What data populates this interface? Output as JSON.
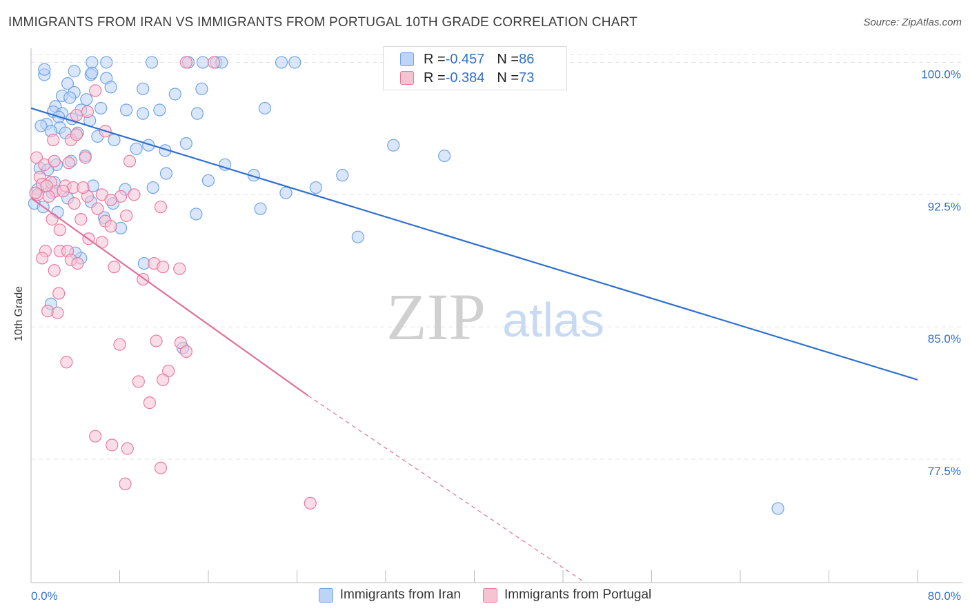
{
  "header": {
    "title": "IMMIGRANTS FROM IRAN VS IMMIGRANTS FROM PORTUGAL 10TH GRADE CORRELATION CHART",
    "source": "Source: ZipAtlas.com"
  },
  "watermark": {
    "zip": "ZIP",
    "atlas": "atlas"
  },
  "legend": {
    "r_label": "R = ",
    "n_label": "N = ",
    "rows": [
      {
        "r": "-0.457",
        "n": "86",
        "color": "#6fa3e8",
        "fill": "#bcd4f5"
      },
      {
        "r": "-0.384",
        "n": "73",
        "color": "#e97aa0",
        "fill": "#f6c3d3"
      }
    ]
  },
  "bottom_legend": [
    {
      "label": "Immigrants from Iran",
      "fill": "#bcd4f5",
      "stroke": "#6fa3e8"
    },
    {
      "label": "Immigrants from Portugal",
      "fill": "#f6c3d3",
      "stroke": "#e97aa0"
    }
  ],
  "chart_data": {
    "type": "scatter",
    "title": "IMMIGRANTS FROM IRAN VS IMMIGRANTS FROM PORTUGAL 10TH GRADE CORRELATION CHART",
    "xlabel": "",
    "ylabel": "10th Grade",
    "xlim": [
      0,
      80
    ],
    "ylim": [
      70.5,
      100.8
    ],
    "x_tick_labels": [
      "0.0%",
      "80.0%"
    ],
    "y_ticks": [
      77.5,
      85.0,
      92.5,
      100.0
    ],
    "y_tick_labels": [
      "77.5%",
      "85.0%",
      "92.5%",
      "100.0%"
    ],
    "grid": true,
    "series": [
      {
        "name": "Immigrants from Iran",
        "color": "#6fa3e8",
        "fill": "#bcd4f5",
        "trend": {
          "x": [
            0,
            80
          ],
          "y": [
            97.4,
            82.0
          ],
          "style": "solid",
          "color": "#2f6fce"
        },
        "points": [
          [
            5.5,
            100.0
          ],
          [
            6.8,
            100.0
          ],
          [
            10.9,
            100.0
          ],
          [
            15.5,
            100.0
          ],
          [
            16.7,
            100.0
          ],
          [
            17.2,
            100.0
          ],
          [
            14.2,
            100.0
          ],
          [
            22.6,
            100.0
          ],
          [
            23.8,
            100.0
          ],
          [
            1.2,
            99.3
          ],
          [
            5.4,
            99.3
          ],
          [
            3.9,
            99.5
          ],
          [
            1.2,
            99.6
          ],
          [
            5.5,
            99.4
          ],
          [
            6.8,
            99.1
          ],
          [
            3.3,
            98.8
          ],
          [
            3.9,
            98.3
          ],
          [
            7.2,
            98.6
          ],
          [
            10.1,
            98.5
          ],
          [
            13.0,
            98.2
          ],
          [
            15.4,
            98.5
          ],
          [
            2.8,
            98.1
          ],
          [
            3.5,
            98.0
          ],
          [
            5.0,
            97.9
          ],
          [
            6.3,
            97.4
          ],
          [
            4.5,
            97.3
          ],
          [
            2.2,
            97.5
          ],
          [
            2.0,
            97.2
          ],
          [
            2.8,
            97.1
          ],
          [
            8.6,
            97.3
          ],
          [
            10.1,
            97.1
          ],
          [
            11.6,
            97.3
          ],
          [
            15.0,
            97.1
          ],
          [
            21.1,
            97.4
          ],
          [
            2.5,
            96.9
          ],
          [
            3.7,
            96.8
          ],
          [
            5.3,
            96.7
          ],
          [
            1.4,
            96.5
          ],
          [
            0.9,
            96.4
          ],
          [
            2.6,
            96.3
          ],
          [
            1.8,
            96.1
          ],
          [
            3.1,
            96.0
          ],
          [
            4.2,
            96.0
          ],
          [
            6.0,
            95.8
          ],
          [
            7.5,
            95.6
          ],
          [
            10.6,
            95.3
          ],
          [
            12.1,
            95.0
          ],
          [
            14.0,
            95.4
          ],
          [
            4.9,
            94.7
          ],
          [
            2.3,
            94.2
          ],
          [
            3.6,
            94.4
          ],
          [
            0.8,
            94.0
          ],
          [
            1.5,
            93.9
          ],
          [
            2.1,
            93.2
          ],
          [
            5.6,
            93.0
          ],
          [
            8.5,
            92.8
          ],
          [
            11.0,
            92.9
          ],
          [
            0.6,
            92.8
          ],
          [
            1.9,
            92.6
          ],
          [
            3.3,
            92.3
          ],
          [
            5.4,
            92.1
          ],
          [
            7.4,
            92.0
          ],
          [
            12.2,
            93.7
          ],
          [
            16.0,
            93.3
          ],
          [
            20.1,
            93.6
          ],
          [
            28.1,
            93.6
          ],
          [
            25.7,
            92.9
          ],
          [
            32.7,
            95.3
          ],
          [
            37.3,
            94.7
          ],
          [
            20.7,
            91.7
          ],
          [
            14.9,
            91.4
          ],
          [
            29.5,
            90.1
          ],
          [
            10.2,
            88.6
          ],
          [
            4.5,
            88.9
          ],
          [
            1.8,
            86.3
          ],
          [
            13.7,
            83.8
          ],
          [
            67.4,
            74.7
          ],
          [
            0.3,
            92.0
          ],
          [
            1.1,
            91.8
          ],
          [
            2.4,
            91.5
          ],
          [
            6.6,
            91.2
          ],
          [
            8.1,
            90.6
          ],
          [
            4.0,
            89.2
          ],
          [
            17.5,
            94.2
          ],
          [
            9.5,
            95.1
          ],
          [
            23.0,
            92.6
          ]
        ]
      },
      {
        "name": "Immigrants from Portugal",
        "color": "#e97aa0",
        "fill": "#f6c3d3",
        "trend": {
          "x": [
            0,
            25
          ],
          "y": [
            92.3,
            81.1
          ],
          "style": "solid",
          "color": "#e0709a",
          "dash_x": [
            25,
            50
          ],
          "dash_y": [
            81.1,
            70.5
          ]
        },
        "points": [
          [
            14.0,
            100.0
          ],
          [
            16.5,
            100.0
          ],
          [
            5.8,
            98.4
          ],
          [
            4.1,
            97.0
          ],
          [
            5.1,
            97.2
          ],
          [
            2.0,
            95.6
          ],
          [
            3.6,
            95.6
          ],
          [
            6.7,
            96.1
          ],
          [
            4.1,
            95.9
          ],
          [
            0.5,
            94.6
          ],
          [
            1.2,
            94.2
          ],
          [
            2.1,
            94.4
          ],
          [
            3.4,
            94.3
          ],
          [
            4.9,
            94.6
          ],
          [
            8.9,
            94.4
          ],
          [
            0.8,
            93.5
          ],
          [
            1.0,
            93.1
          ],
          [
            1.8,
            93.2
          ],
          [
            3.1,
            93.0
          ],
          [
            3.8,
            92.9
          ],
          [
            2.2,
            92.7
          ],
          [
            0.6,
            92.5
          ],
          [
            1.6,
            92.4
          ],
          [
            5.1,
            92.4
          ],
          [
            6.4,
            92.5
          ],
          [
            8.1,
            92.4
          ],
          [
            9.3,
            92.5
          ],
          [
            7.2,
            92.2
          ],
          [
            11.7,
            91.8
          ],
          [
            1.9,
            91.1
          ],
          [
            4.5,
            91.1
          ],
          [
            8.6,
            91.3
          ],
          [
            6.7,
            91.0
          ],
          [
            2.6,
            90.5
          ],
          [
            7.2,
            90.7
          ],
          [
            5.2,
            90.0
          ],
          [
            6.4,
            89.8
          ],
          [
            1.3,
            89.3
          ],
          [
            2.6,
            89.3
          ],
          [
            3.3,
            89.3
          ],
          [
            1.0,
            88.9
          ],
          [
            3.6,
            88.8
          ],
          [
            4.2,
            88.6
          ],
          [
            7.5,
            88.4
          ],
          [
            11.1,
            88.6
          ],
          [
            11.9,
            88.4
          ],
          [
            13.4,
            88.3
          ],
          [
            2.1,
            88.2
          ],
          [
            10.1,
            87.7
          ],
          [
            2.5,
            86.9
          ],
          [
            1.5,
            85.9
          ],
          [
            2.4,
            85.8
          ],
          [
            11.3,
            84.2
          ],
          [
            8.0,
            84.0
          ],
          [
            13.5,
            84.1
          ],
          [
            14.0,
            83.6
          ],
          [
            3.2,
            83.0
          ],
          [
            12.4,
            82.5
          ],
          [
            9.7,
            81.9
          ],
          [
            11.9,
            82.0
          ],
          [
            10.7,
            80.7
          ],
          [
            5.8,
            78.8
          ],
          [
            7.3,
            78.3
          ],
          [
            8.7,
            78.1
          ],
          [
            11.7,
            77.0
          ],
          [
            8.5,
            76.1
          ],
          [
            25.2,
            75.0
          ],
          [
            3.9,
            92.0
          ],
          [
            4.7,
            92.9
          ],
          [
            0.4,
            92.6
          ],
          [
            2.9,
            92.7
          ],
          [
            1.4,
            93.0
          ],
          [
            6.0,
            91.7
          ]
        ]
      }
    ]
  }
}
